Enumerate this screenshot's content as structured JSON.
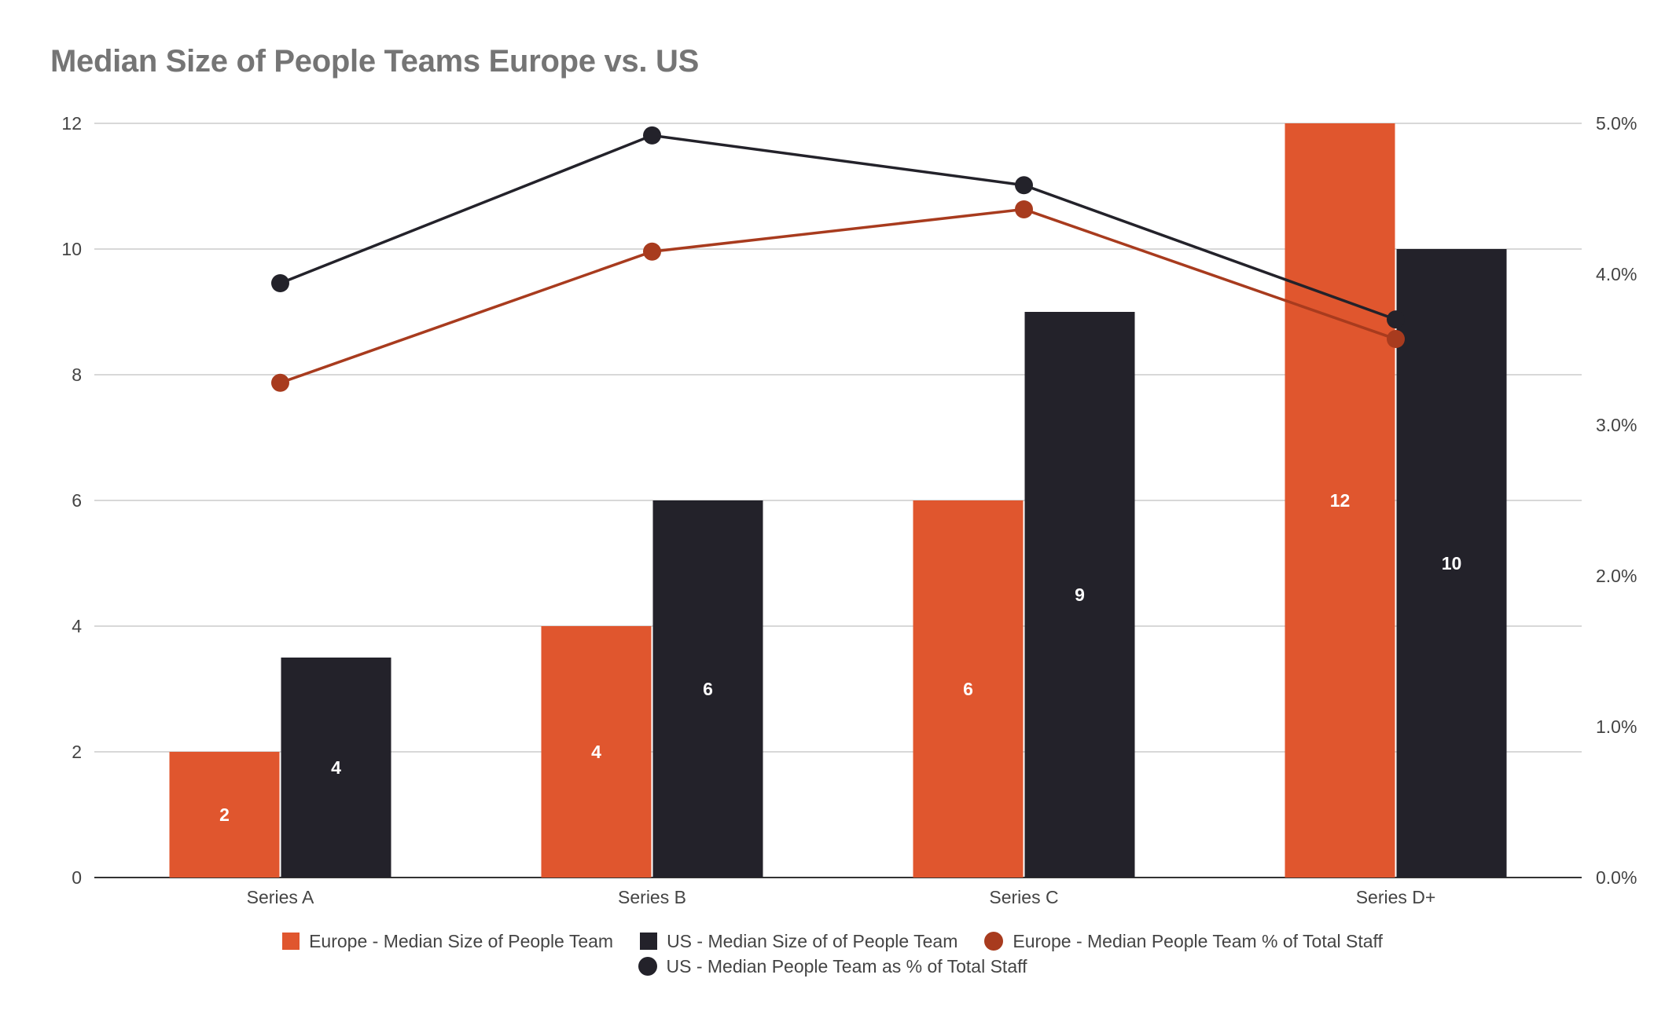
{
  "chart_data": {
    "type": "bar",
    "title": "Median Size of People Teams Europe vs. US",
    "categories": [
      "Series A",
      "Series B",
      "Series C",
      "Series D+"
    ],
    "ylim": [
      0,
      12
    ],
    "y_ticks": [
      "0",
      "2",
      "4",
      "6",
      "8",
      "10",
      "12"
    ],
    "y2lim": [
      0,
      5.0
    ],
    "y2_ticks": [
      "0.0%",
      "1.0%",
      "2.0%",
      "3.0%",
      "4.0%",
      "5.0%"
    ],
    "grid": true,
    "legend_position": "bottom",
    "series": [
      {
        "name": "Europe - Median Size of People Team",
        "kind": "bar",
        "axis": "left",
        "color": "#E0562E",
        "values": [
          2,
          4,
          6,
          12
        ],
        "labels": [
          "2",
          "4",
          "6",
          "12"
        ]
      },
      {
        "name": "US - Median Size of of People Team",
        "kind": "bar",
        "axis": "left",
        "color": "#23222A",
        "values": [
          3.5,
          6,
          9,
          10
        ],
        "labels": [
          "4",
          "6",
          "9",
          "10"
        ]
      },
      {
        "name": "Europe - Median People Team % of Total Staff",
        "kind": "line",
        "axis": "right",
        "color": "#A83B1E",
        "values": [
          3.28,
          4.15,
          4.43,
          3.57
        ]
      },
      {
        "name": "US - Median People Team as % of Total Staff",
        "kind": "line",
        "axis": "right",
        "color": "#23222A",
        "values": [
          3.94,
          4.92,
          4.59,
          3.7
        ]
      }
    ]
  }
}
